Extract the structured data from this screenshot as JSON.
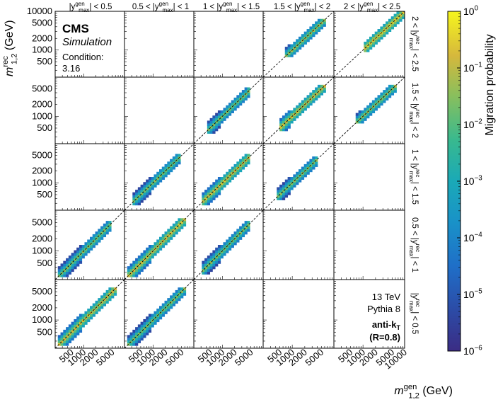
{
  "chart_data": {
    "type": "heatmap",
    "experiment": "CMS",
    "experiment_label": "Simulation",
    "condition_label": "Condition:",
    "condition_value": "3.16",
    "energy": "13 TeV",
    "generator": "Pythia 8",
    "algorithm": "anti-k",
    "algorithm_sub": "T",
    "radius": "(R=0.8)",
    "xlabel": "m",
    "xlabel_sub": "1,2",
    "xlabel_sup": "gen",
    "xlabel_unit": " (GeV)",
    "ylabel": "m",
    "ylabel_sub": "1,2",
    "ylabel_sup": "rec",
    "ylabel_unit": " (GeV)",
    "colorbar_label": "Migration probability",
    "colorbar_scale": "log",
    "colorbar_range": [
      1e-06,
      1
    ],
    "colorbar_ticks": [
      {
        "base": "10",
        "exp": "0"
      },
      {
        "base": "10",
        "exp": "−1"
      },
      {
        "base": "10",
        "exp": "−2"
      },
      {
        "base": "10",
        "exp": "−3"
      },
      {
        "base": "10",
        "exp": "−4"
      },
      {
        "base": "10",
        "exp": "−5"
      },
      {
        "base": "10",
        "exp": "−6"
      }
    ],
    "column_headers": [
      {
        "pre": "",
        "var": "|y",
        "sup": "gen",
        "sub": "max",
        "post": "| < 0.5"
      },
      {
        "pre": "0.5 < ",
        "var": "|y",
        "sup": "gen",
        "sub": "max",
        "post": "| < 1"
      },
      {
        "pre": "1 < ",
        "var": "|y",
        "sup": "gen",
        "sub": "max",
        "post": "| < 1.5"
      },
      {
        "pre": "1.5 < ",
        "var": "|y",
        "sup": "gen",
        "sub": "max",
        "post": "| < 2"
      },
      {
        "pre": "2 < ",
        "var": "|y",
        "sup": "gen",
        "sub": "max",
        "post": "| < 2.5"
      }
    ],
    "row_headers": [
      {
        "pre": "2 < ",
        "var": "|y",
        "sup": "rec",
        "sub": "max",
        "post": "| < 2.5"
      },
      {
        "pre": "1.5 < ",
        "var": "|y",
        "sup": "rec",
        "sub": "max",
        "post": "| < 2"
      },
      {
        "pre": "1 < ",
        "var": "|y",
        "sup": "rec",
        "sub": "max",
        "post": "| < 1.5"
      },
      {
        "pre": "0.5 < ",
        "var": "|y",
        "sup": "rec",
        "sub": "max",
        "post": "| < 1"
      },
      {
        "pre": "",
        "var": "|y",
        "sup": "rec",
        "sub": "max",
        "post": "| < 0.5"
      }
    ],
    "mass_range_gev": [
      200,
      10000
    ],
    "axis_scale": "log",
    "y_ticks_top_panel": [
      "10000",
      "5000",
      "2000",
      "1000",
      "500"
    ],
    "y_ticks_other_panels": [
      "5000",
      "2000",
      "1000",
      "500"
    ],
    "x_ticks_standard": [
      "500",
      "1000",
      "2000",
      "5000"
    ],
    "x_ticks_last_column": [
      "500",
      "1000",
      "2000",
      "5000",
      "10000"
    ],
    "x_tick_values": [
      500,
      1000,
      2000,
      5000
    ],
    "x_tick_values_last_column": [
      500,
      1000,
      2000,
      5000,
      10000
    ],
    "y_tick_values_top_panel": [
      10000,
      5000,
      2000,
      1000,
      500
    ],
    "y_tick_values_other_panels": [
      5000,
      2000,
      1000,
      500
    ],
    "blocks": [
      {
        "rec_bin": 5,
        "gen_bin": 5,
        "filled": true,
        "m_min": 1000,
        "m_max": 10000,
        "diag_prob_max": 0.5
      },
      {
        "rec_bin": 5,
        "gen_bin": 4,
        "filled": true,
        "m_min": 700,
        "m_max": 6000,
        "diag_prob_max": 0.08
      },
      {
        "rec_bin": 4,
        "gen_bin": 5,
        "filled": true,
        "m_min": 700,
        "m_max": 6000,
        "diag_prob_max": 0.08
      },
      {
        "rec_bin": 4,
        "gen_bin": 4,
        "filled": true,
        "m_min": 500,
        "m_max": 6000,
        "diag_prob_max": 0.3
      },
      {
        "rec_bin": 4,
        "gen_bin": 3,
        "filled": true,
        "m_min": 400,
        "m_max": 5000,
        "diag_prob_max": 0.05
      },
      {
        "rec_bin": 3,
        "gen_bin": 4,
        "filled": true,
        "m_min": 400,
        "m_max": 4000,
        "diag_prob_max": 0.05
      },
      {
        "rec_bin": 3,
        "gen_bin": 3,
        "filled": true,
        "m_min": 300,
        "m_max": 5000,
        "diag_prob_max": 0.3
      },
      {
        "rec_bin": 3,
        "gen_bin": 2,
        "filled": true,
        "m_min": 300,
        "m_max": 5000,
        "diag_prob_max": 0.05
      },
      {
        "rec_bin": 2,
        "gen_bin": 3,
        "filled": true,
        "m_min": 300,
        "m_max": 5000,
        "diag_prob_max": 0.05
      },
      {
        "rec_bin": 2,
        "gen_bin": 2,
        "filled": true,
        "m_min": 250,
        "m_max": 6000,
        "diag_prob_max": 0.3
      },
      {
        "rec_bin": 2,
        "gen_bin": 1,
        "filled": true,
        "m_min": 250,
        "m_max": 5000,
        "diag_prob_max": 0.05
      },
      {
        "rec_bin": 1,
        "gen_bin": 2,
        "filled": true,
        "m_min": 250,
        "m_max": 6000,
        "diag_prob_max": 0.05
      },
      {
        "rec_bin": 1,
        "gen_bin": 1,
        "filled": true,
        "m_min": 250,
        "m_max": 6000,
        "diag_prob_max": 0.3
      }
    ]
  }
}
